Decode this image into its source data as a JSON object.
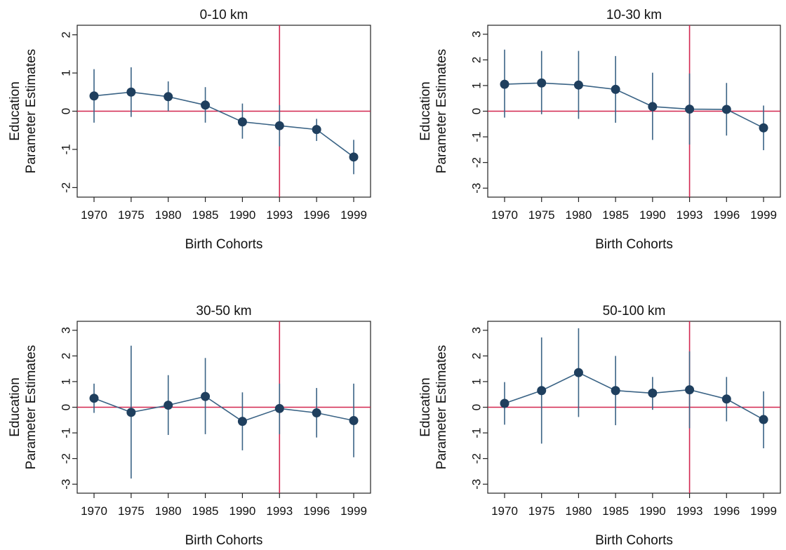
{
  "colors": {
    "series": "#1f3f5e",
    "ci": "#3a6385",
    "reference": "#d2264f",
    "frame": "#222222"
  },
  "chart_data": [
    {
      "type": "line",
      "title": "0-10 km",
      "xlabel": "Birth Cohorts",
      "ylabel_line1": "Education",
      "ylabel_line2": "Parameter Estimates",
      "categories": [
        "1970",
        "1975",
        "1980",
        "1985",
        "1990",
        "1993",
        "1996",
        "1999"
      ],
      "yticks": [
        "2",
        "1",
        "0",
        "-1",
        "-2"
      ],
      "ylim": [
        -2.25,
        2.25
      ],
      "values": [
        0.4,
        0.5,
        0.38,
        0.16,
        -0.28,
        -0.38,
        -0.48,
        -1.2
      ],
      "ci_low": [
        -0.3,
        -0.15,
        0.0,
        -0.3,
        -0.72,
        -0.92,
        -0.78,
        -1.65
      ],
      "ci_high": [
        1.1,
        1.15,
        0.78,
        0.63,
        0.2,
        0.16,
        -0.2,
        -0.75
      ],
      "hline": 0,
      "vline": "1993",
      "grid": false
    },
    {
      "type": "line",
      "title": "10-30 km",
      "xlabel": "Birth Cohorts",
      "ylabel_line1": "Education",
      "ylabel_line2": "Parameter Estimates",
      "categories": [
        "1970",
        "1975",
        "1980",
        "1985",
        "1990",
        "1993",
        "1996",
        "1999"
      ],
      "yticks": [
        "3",
        "2",
        "1",
        "0",
        "-1",
        "-2",
        "-3"
      ],
      "ylim": [
        -3.35,
        3.35
      ],
      "values": [
        1.05,
        1.1,
        1.02,
        0.85,
        0.18,
        0.08,
        0.07,
        -0.65
      ],
      "ci_low": [
        -0.25,
        -0.12,
        -0.3,
        -0.45,
        -1.12,
        -1.3,
        -0.95,
        -1.52
      ],
      "ci_high": [
        2.4,
        2.35,
        2.35,
        2.15,
        1.5,
        1.47,
        1.1,
        0.22
      ],
      "hline": 0,
      "vline": "1993",
      "grid": false
    },
    {
      "type": "line",
      "title": "30-50 km",
      "xlabel": "Birth Cohorts",
      "ylabel_line1": "Education",
      "ylabel_line2": "Parameter Estimates",
      "categories": [
        "1970",
        "1975",
        "1980",
        "1985",
        "1990",
        "1993",
        "1996",
        "1999"
      ],
      "yticks": [
        "3",
        "2",
        "1",
        "0",
        "-1",
        "-2",
        "-3"
      ],
      "ylim": [
        -3.35,
        3.35
      ],
      "values": [
        0.35,
        -0.2,
        0.08,
        0.42,
        -0.55,
        -0.05,
        -0.22,
        -0.52
      ],
      "ci_low": [
        -0.22,
        -2.78,
        -1.08,
        -1.05,
        -1.68,
        -1.05,
        -1.18,
        -1.95
      ],
      "ci_high": [
        0.92,
        2.4,
        1.25,
        1.92,
        0.58,
        0.92,
        0.75,
        0.92
      ],
      "hline": 0,
      "vline": "1993",
      "grid": false
    },
    {
      "type": "line",
      "title": "50-100 km",
      "xlabel": "Birth Cohorts",
      "ylabel_line1": "Education",
      "ylabel_line2": "Parameter Estimates",
      "categories": [
        "1970",
        "1975",
        "1980",
        "1985",
        "1990",
        "1993",
        "1996",
        "1999"
      ],
      "yticks": [
        "3",
        "2",
        "1",
        "0",
        "-1",
        "-2",
        "-3"
      ],
      "ylim": [
        -3.35,
        3.35
      ],
      "values": [
        0.15,
        0.65,
        1.35,
        0.65,
        0.55,
        0.68,
        0.32,
        -0.48
      ],
      "ci_low": [
        -0.68,
        -1.42,
        -0.38,
        -0.7,
        -0.1,
        -0.82,
        -0.55,
        -1.6
      ],
      "ci_high": [
        0.98,
        2.72,
        3.08,
        2.0,
        1.18,
        2.18,
        1.18,
        0.62
      ],
      "hline": 0,
      "vline": "1993",
      "grid": false
    }
  ]
}
